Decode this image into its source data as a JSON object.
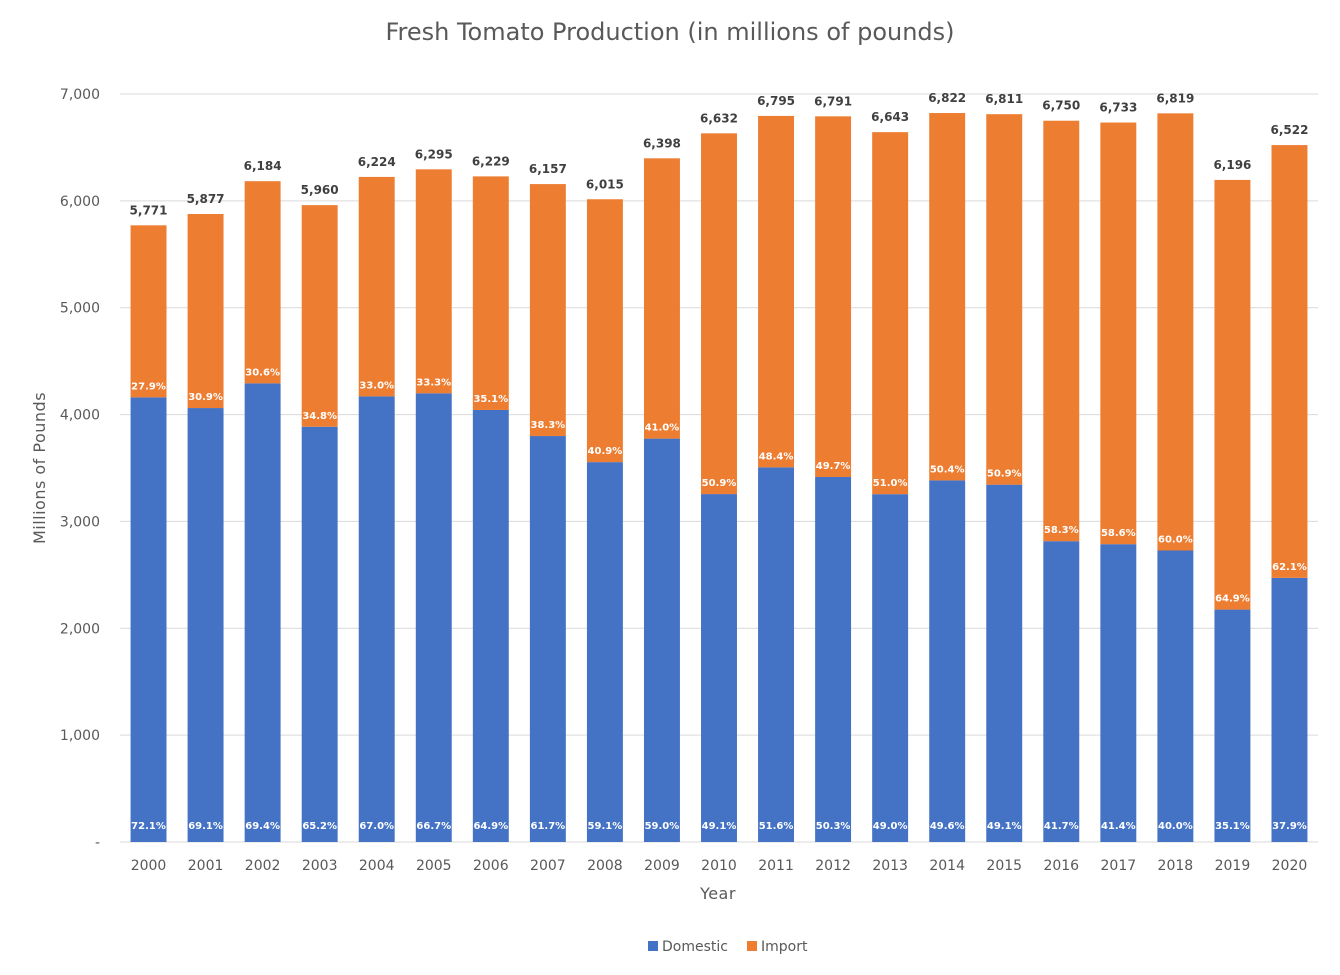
{
  "chart_data": {
    "type": "bar",
    "stacked": true,
    "title": "Fresh Tomato Production (in millions of pounds)",
    "xlabel": "Year",
    "ylabel": "Millions of Pounds",
    "ylim": [
      0,
      7000
    ],
    "yticks": [
      0,
      1000,
      2000,
      3000,
      4000,
      5000,
      6000,
      7000
    ],
    "ytick_labels": [
      "-",
      "1,000",
      "2,000",
      "3,000",
      "4,000",
      "5,000",
      "6,000",
      "7,000"
    ],
    "grid": true,
    "legend_position": "bottom-center",
    "categories": [
      "2000",
      "2001",
      "2002",
      "2003",
      "2004",
      "2005",
      "2006",
      "2007",
      "2008",
      "2009",
      "2010",
      "2011",
      "2012",
      "2013",
      "2014",
      "2015",
      "2016",
      "2017",
      "2018",
      "2019",
      "2020"
    ],
    "totals": [
      5771,
      5877,
      6184,
      5960,
      6224,
      6295,
      6229,
      6157,
      6015,
      6398,
      6632,
      6795,
      6791,
      6643,
      6822,
      6811,
      6750,
      6733,
      6819,
      6196,
      6522
    ],
    "total_labels": [
      "5,771",
      "5,877",
      "6,184",
      "5,960",
      "6,224",
      "6,295",
      "6,229",
      "6,157",
      "6,015",
      "6,398",
      "6,632",
      "6,795",
      "6,791",
      "6,643",
      "6,822",
      "6,811",
      "6,750",
      "6,733",
      "6,819",
      "6,196",
      "6,522"
    ],
    "series": [
      {
        "name": "Domestic",
        "color": "#4472c4",
        "values": [
          4161,
          4061,
          4292,
          3886,
          4170,
          4199,
          4043,
          3799,
          3555,
          3775,
          3256,
          3506,
          3416,
          3255,
          3384,
          3344,
          2815,
          2787,
          2728,
          2175,
          2472
        ],
        "pct_labels": [
          "72.1%",
          "69.1%",
          "69.4%",
          "65.2%",
          "67.0%",
          "66.7%",
          "64.9%",
          "61.7%",
          "59.1%",
          "59.0%",
          "49.1%",
          "51.6%",
          "50.3%",
          "49.0%",
          "49.6%",
          "49.1%",
          "41.7%",
          "41.4%",
          "40.0%",
          "35.1%",
          "37.9%"
        ]
      },
      {
        "name": "Import",
        "color": "#ed7d31",
        "values": [
          1610,
          1816,
          1892,
          2074,
          2054,
          2096,
          2186,
          2358,
          2460,
          2623,
          3376,
          3289,
          3375,
          3388,
          3438,
          3467,
          3935,
          3946,
          4091,
          4021,
          4050
        ],
        "pct_labels": [
          "27.9%",
          "30.9%",
          "30.6%",
          "34.8%",
          "33.0%",
          "33.3%",
          "35.1%",
          "38.3%",
          "40.9%",
          "41.0%",
          "50.9%",
          "48.4%",
          "49.7%",
          "51.0%",
          "50.4%",
          "50.9%",
          "58.3%",
          "58.6%",
          "60.0%",
          "64.9%",
          "62.1%"
        ]
      }
    ]
  }
}
